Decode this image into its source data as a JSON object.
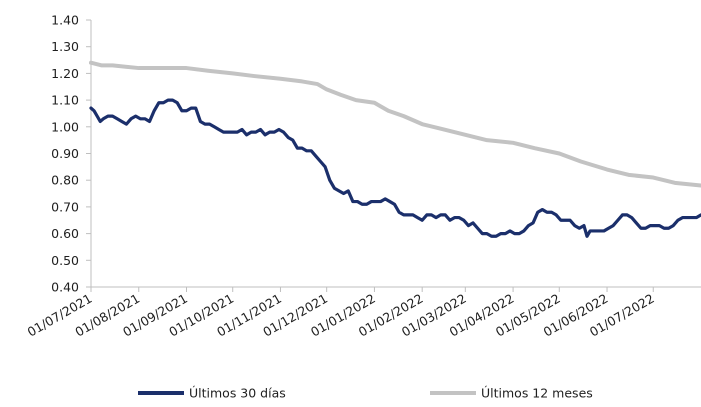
{
  "chart_data": {
    "type": "line",
    "title": "",
    "xlabel": "",
    "ylabel": "",
    "ylim": [
      0.4,
      1.4
    ],
    "y_ticks": [
      0.4,
      0.5,
      0.6,
      0.7,
      0.8,
      0.9,
      1.0,
      1.1,
      1.2,
      1.3,
      1.4
    ],
    "y_tick_labels": [
      "0.40",
      "0.50",
      "0.60",
      "0.70",
      "0.80",
      "0.90",
      "1.00",
      "1.10",
      "1.20",
      "1.30",
      "1.40"
    ],
    "x_ticks": [
      "01/07/2021",
      "01/08/2021",
      "01/09/2021",
      "01/10/2021",
      "01/11/2021",
      "01/12/2021",
      "01/01/2022",
      "01/02/2022",
      "01/03/2022",
      "01/04/2022",
      "01/05/2022",
      "01/06/2022",
      "01/07/2022"
    ],
    "x_end": "01/08/2022",
    "grid": false,
    "legend_position": "bottom",
    "series": [
      {
        "name": "Últimos 30 días",
        "color": "#1b2f6b",
        "points": [
          [
            "01/07/2021",
            1.07
          ],
          [
            "03/07/2021",
            1.06
          ],
          [
            "05/07/2021",
            1.04
          ],
          [
            "07/07/2021",
            1.02
          ],
          [
            "09/07/2021",
            1.03
          ],
          [
            "12/07/2021",
            1.04
          ],
          [
            "15/07/2021",
            1.04
          ],
          [
            "18/07/2021",
            1.03
          ],
          [
            "21/07/2021",
            1.02
          ],
          [
            "24/07/2021",
            1.01
          ],
          [
            "27/07/2021",
            1.03
          ],
          [
            "30/07/2021",
            1.04
          ],
          [
            "02/08/2021",
            1.03
          ],
          [
            "05/08/2021",
            1.03
          ],
          [
            "08/08/2021",
            1.02
          ],
          [
            "11/08/2021",
            1.06
          ],
          [
            "14/08/2021",
            1.09
          ],
          [
            "17/08/2021",
            1.09
          ],
          [
            "20/08/2021",
            1.1
          ],
          [
            "23/08/2021",
            1.1
          ],
          [
            "26/08/2021",
            1.09
          ],
          [
            "29/08/2021",
            1.06
          ],
          [
            "01/09/2021",
            1.06
          ],
          [
            "04/09/2021",
            1.07
          ],
          [
            "07/09/2021",
            1.07
          ],
          [
            "10/09/2021",
            1.02
          ],
          [
            "13/09/2021",
            1.01
          ],
          [
            "16/09/2021",
            1.01
          ],
          [
            "19/09/2021",
            1.0
          ],
          [
            "22/09/2021",
            0.99
          ],
          [
            "25/09/2021",
            0.98
          ],
          [
            "28/09/2021",
            0.98
          ],
          [
            "01/10/2021",
            0.98
          ],
          [
            "04/10/2021",
            0.98
          ],
          [
            "07/10/2021",
            0.99
          ],
          [
            "10/10/2021",
            0.97
          ],
          [
            "13/10/2021",
            0.98
          ],
          [
            "16/10/2021",
            0.98
          ],
          [
            "19/10/2021",
            0.99
          ],
          [
            "22/10/2021",
            0.97
          ],
          [
            "25/10/2021",
            0.98
          ],
          [
            "28/10/2021",
            0.98
          ],
          [
            "31/10/2021",
            0.99
          ],
          [
            "03/11/2021",
            0.98
          ],
          [
            "06/11/2021",
            0.96
          ],
          [
            "09/11/2021",
            0.95
          ],
          [
            "12/11/2021",
            0.92
          ],
          [
            "15/11/2021",
            0.92
          ],
          [
            "18/11/2021",
            0.91
          ],
          [
            "21/11/2021",
            0.91
          ],
          [
            "24/11/2021",
            0.89
          ],
          [
            "27/11/2021",
            0.87
          ],
          [
            "30/11/2021",
            0.85
          ],
          [
            "03/12/2021",
            0.8
          ],
          [
            "06/12/2021",
            0.77
          ],
          [
            "09/12/2021",
            0.76
          ],
          [
            "12/12/2021",
            0.75
          ],
          [
            "15/12/2021",
            0.76
          ],
          [
            "18/12/2021",
            0.72
          ],
          [
            "21/12/2021",
            0.72
          ],
          [
            "24/12/2021",
            0.71
          ],
          [
            "27/12/2021",
            0.71
          ],
          [
            "30/12/2021",
            0.72
          ],
          [
            "02/01/2022",
            0.72
          ],
          [
            "05/01/2022",
            0.72
          ],
          [
            "08/01/2022",
            0.73
          ],
          [
            "11/01/2022",
            0.72
          ],
          [
            "14/01/2022",
            0.71
          ],
          [
            "17/01/2022",
            0.68
          ],
          [
            "20/01/2022",
            0.67
          ],
          [
            "23/01/2022",
            0.67
          ],
          [
            "26/01/2022",
            0.67
          ],
          [
            "29/01/2022",
            0.66
          ],
          [
            "01/02/2022",
            0.65
          ],
          [
            "04/02/2022",
            0.67
          ],
          [
            "07/02/2022",
            0.67
          ],
          [
            "10/02/2022",
            0.66
          ],
          [
            "13/02/2022",
            0.67
          ],
          [
            "16/02/2022",
            0.67
          ],
          [
            "19/02/2022",
            0.65
          ],
          [
            "22/02/2022",
            0.66
          ],
          [
            "25/02/2022",
            0.66
          ],
          [
            "28/02/2022",
            0.65
          ],
          [
            "03/03/2022",
            0.63
          ],
          [
            "06/03/2022",
            0.64
          ],
          [
            "09/03/2022",
            0.62
          ],
          [
            "12/03/2022",
            0.6
          ],
          [
            "15/03/2022",
            0.6
          ],
          [
            "18/03/2022",
            0.59
          ],
          [
            "21/03/2022",
            0.59
          ],
          [
            "24/03/2022",
            0.6
          ],
          [
            "27/03/2022",
            0.6
          ],
          [
            "30/03/2022",
            0.61
          ],
          [
            "02/04/2022",
            0.6
          ],
          [
            "05/04/2022",
            0.6
          ],
          [
            "08/04/2022",
            0.61
          ],
          [
            "11/04/2022",
            0.63
          ],
          [
            "14/04/2022",
            0.64
          ],
          [
            "17/04/2022",
            0.68
          ],
          [
            "20/04/2022",
            0.69
          ],
          [
            "23/04/2022",
            0.68
          ],
          [
            "26/04/2022",
            0.68
          ],
          [
            "29/04/2022",
            0.67
          ],
          [
            "02/05/2022",
            0.65
          ],
          [
            "05/05/2022",
            0.65
          ],
          [
            "08/05/2022",
            0.65
          ],
          [
            "11/05/2022",
            0.63
          ],
          [
            "14/05/2022",
            0.62
          ],
          [
            "17/05/2022",
            0.63
          ],
          [
            "19/05/2022",
            0.59
          ],
          [
            "21/05/2022",
            0.61
          ],
          [
            "24/05/2022",
            0.61
          ],
          [
            "27/05/2022",
            0.61
          ],
          [
            "30/05/2022",
            0.61
          ],
          [
            "02/06/2022",
            0.62
          ],
          [
            "05/06/2022",
            0.63
          ],
          [
            "08/06/2022",
            0.65
          ],
          [
            "11/06/2022",
            0.67
          ],
          [
            "14/06/2022",
            0.67
          ],
          [
            "17/06/2022",
            0.66
          ],
          [
            "20/06/2022",
            0.64
          ],
          [
            "23/06/2022",
            0.62
          ],
          [
            "26/06/2022",
            0.62
          ],
          [
            "29/06/2022",
            0.63
          ],
          [
            "02/07/2022",
            0.63
          ],
          [
            "05/07/2022",
            0.63
          ],
          [
            "08/07/2022",
            0.62
          ],
          [
            "11/07/2022",
            0.62
          ],
          [
            "14/07/2022",
            0.63
          ],
          [
            "17/07/2022",
            0.65
          ],
          [
            "20/07/2022",
            0.66
          ],
          [
            "23/07/2022",
            0.66
          ],
          [
            "26/07/2022",
            0.66
          ],
          [
            "29/07/2022",
            0.66
          ],
          [
            "01/08/2022",
            0.67
          ]
        ]
      },
      {
        "name": "Últimos 12 meses",
        "color": "#c3c3c3",
        "points": [
          [
            "01/07/2021",
            1.24
          ],
          [
            "08/07/2021",
            1.23
          ],
          [
            "15/07/2021",
            1.23
          ],
          [
            "01/08/2021",
            1.22
          ],
          [
            "15/08/2021",
            1.22
          ],
          [
            "01/09/2021",
            1.22
          ],
          [
            "15/09/2021",
            1.21
          ],
          [
            "01/10/2021",
            1.2
          ],
          [
            "15/10/2021",
            1.19
          ],
          [
            "01/11/2021",
            1.18
          ],
          [
            "15/11/2021",
            1.17
          ],
          [
            "25/11/2021",
            1.16
          ],
          [
            "01/12/2021",
            1.14
          ],
          [
            "10/12/2021",
            1.12
          ],
          [
            "20/12/2021",
            1.1
          ],
          [
            "01/01/2022",
            1.09
          ],
          [
            "10/01/2022",
            1.06
          ],
          [
            "20/01/2022",
            1.04
          ],
          [
            "01/02/2022",
            1.01
          ],
          [
            "15/02/2022",
            0.99
          ],
          [
            "01/03/2022",
            0.97
          ],
          [
            "15/03/2022",
            0.95
          ],
          [
            "01/04/2022",
            0.94
          ],
          [
            "15/04/2022",
            0.92
          ],
          [
            "01/05/2022",
            0.9
          ],
          [
            "15/05/2022",
            0.87
          ],
          [
            "01/06/2022",
            0.84
          ],
          [
            "15/06/2022",
            0.82
          ],
          [
            "01/07/2022",
            0.81
          ],
          [
            "15/07/2022",
            0.79
          ],
          [
            "01/08/2022",
            0.78
          ]
        ]
      }
    ]
  }
}
